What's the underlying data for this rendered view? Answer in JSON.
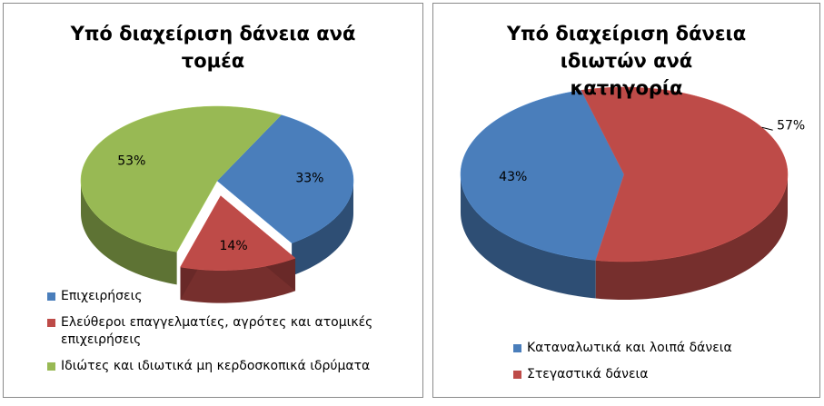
{
  "chart_data": [
    {
      "type": "pie",
      "title": "Υπό διαχείριση δάνεια ανά τομέα",
      "categories": [
        "Επιχειρήσεις",
        "Ελεύθεροι επαγγελματίες, αγρότες και ατομικές επιχειρήσεις",
        "Ιδιώτες και ιδιωτικά μη κερδοσκοπικά ιδρύματα"
      ],
      "values": [
        33,
        14,
        53
      ],
      "value_labels": [
        "33%",
        "14%",
        "53%"
      ],
      "colors": [
        "#4a7ebb",
        "#be4b48",
        "#98b954"
      ]
    },
    {
      "type": "pie",
      "title": "Υπό διαχείριση δάνεια ιδιωτών ανά κατηγορία",
      "categories": [
        "Καταναλωτικά και λοιπά δάνεια",
        "Στεγαστικά δάνεια"
      ],
      "values": [
        43,
        57
      ],
      "value_labels": [
        "43%",
        "57%"
      ],
      "colors": [
        "#4a7ebb",
        "#be4b48"
      ]
    }
  ]
}
